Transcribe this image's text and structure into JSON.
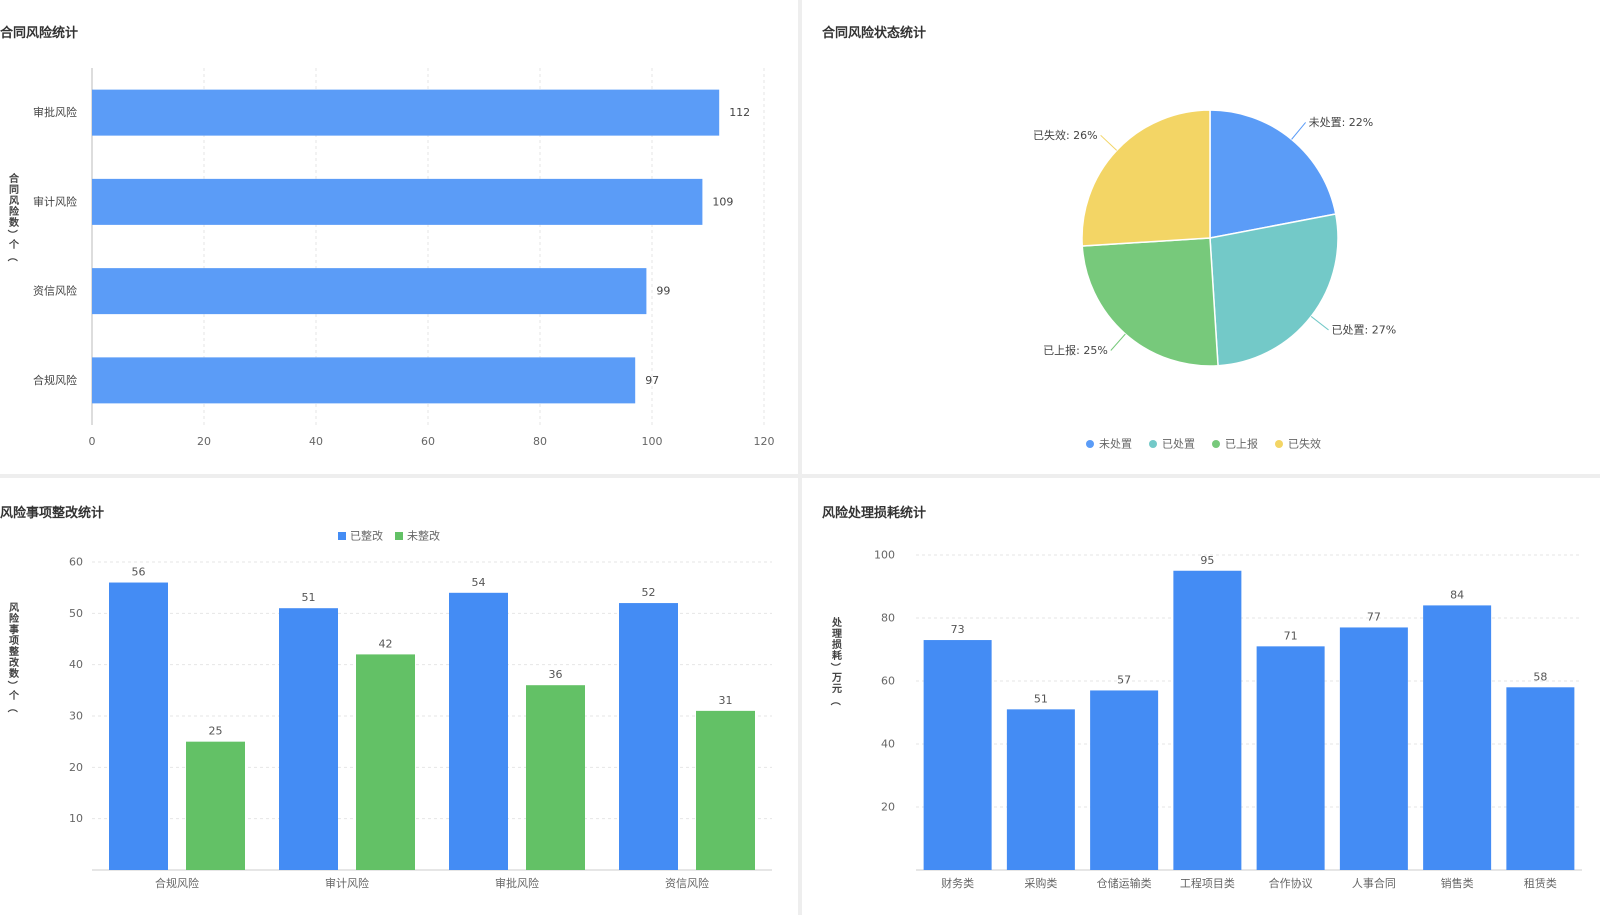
{
  "colors": {
    "blue": "#5b9cf7",
    "blue_dark": "#448cf4",
    "teal": "#73c9c8",
    "green": "#77c97b",
    "green_bar": "#63c166",
    "yellow": "#f3d565",
    "axis_text": "#666666",
    "grid": "#e6e6e6"
  },
  "panels": {
    "contract_risk": {
      "title": "合同风险统计",
      "chart_data": {
        "type": "bar",
        "orientation": "horizontal",
        "categories": [
          "审批风险",
          "审计风险",
          "资信风险",
          "合规风险"
        ],
        "values": [
          112,
          109,
          99,
          97
        ],
        "ylabel": "合同风险数（个）",
        "xlim": [
          0,
          120
        ],
        "xticks": [
          "0",
          "20",
          "40",
          "60",
          "80",
          "100",
          "120"
        ],
        "grid": true
      }
    },
    "risk_status": {
      "title": "合同风险状态统计",
      "chart_data": {
        "type": "pie",
        "categories": [
          "未处置",
          "已处置",
          "已上报",
          "已失效"
        ],
        "values": [
          22,
          27,
          25,
          26
        ],
        "labels": [
          "未处置: 22%",
          "已处置: 27%",
          "已上报: 25%",
          "已失效: 26%"
        ],
        "legend_position": "bottom"
      }
    },
    "rectification": {
      "title": "风险事项整改统计",
      "chart_data": {
        "type": "bar",
        "categories": [
          "合规风险",
          "审计风险",
          "审批风险",
          "资信风险"
        ],
        "series": [
          {
            "name": "已整改",
            "values": [
              56,
              51,
              54,
              52
            ]
          },
          {
            "name": "未整改",
            "values": [
              25,
              42,
              36,
              31
            ]
          }
        ],
        "ylabel": "风险事项整改数（个）",
        "ylim": [
          0,
          60
        ],
        "yticks": [
          "10",
          "20",
          "30",
          "40",
          "50",
          "60"
        ],
        "legend_position": "top",
        "grid": true
      }
    },
    "loss": {
      "title": "风险处理损耗统计",
      "chart_data": {
        "type": "bar",
        "categories": [
          "财务类",
          "采购类",
          "仓储运输类",
          "工程项目类",
          "合作协议",
          "人事合同",
          "销售类",
          "租赁类"
        ],
        "values": [
          73,
          51,
          57,
          95,
          71,
          77,
          84,
          58
        ],
        "ylabel": "处理损耗（万元）",
        "ylim": [
          0,
          100
        ],
        "yticks": [
          "20",
          "40",
          "60",
          "80",
          "100"
        ],
        "grid": true
      }
    }
  }
}
